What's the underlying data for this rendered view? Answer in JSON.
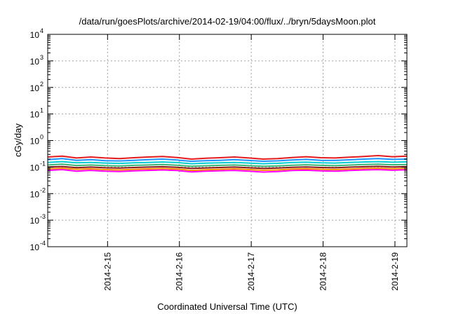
{
  "chart_data": {
    "type": "line",
    "title": "/data/run/goesPlots/archive/2014-02-19/04:00/flux/../bryn/5daysMoon.plot",
    "xlabel": "Coordinated Universal Time (UTC)",
    "ylabel": "cGy/day",
    "y_scale": "log",
    "ylim": [
      0.0001,
      10000
    ],
    "xlim": [
      "2014-02-14 04:00",
      "2014-02-19 04:00"
    ],
    "grid": true,
    "y_ticks": [
      {
        "base": "10",
        "exp": "-4",
        "value": 0.0001
      },
      {
        "base": "10",
        "exp": "-3",
        "value": 0.001
      },
      {
        "base": "10",
        "exp": "-2",
        "value": 0.01
      },
      {
        "base": "10",
        "exp": "-1",
        "value": 0.1
      },
      {
        "base": "10",
        "exp": "0",
        "value": 1
      },
      {
        "base": "10",
        "exp": "1",
        "value": 10
      },
      {
        "base": "10",
        "exp": "2",
        "value": 100
      },
      {
        "base": "10",
        "exp": "3",
        "value": 1000
      },
      {
        "base": "10",
        "exp": "4",
        "value": 10000
      }
    ],
    "x_ticks": [
      {
        "label": "2014-2-15",
        "value": "2014-02-15 00:00"
      },
      {
        "label": "2014-2-16",
        "value": "2014-02-16 00:00"
      },
      {
        "label": "2014-2-17",
        "value": "2014-02-17 00:00"
      },
      {
        "label": "2014-2-18",
        "value": "2014-02-18 00:00"
      },
      {
        "label": "2014-2-19",
        "value": "2014-02-19 00:00"
      }
    ],
    "series": [
      {
        "color": "#ff00ff",
        "values": [
          0.075,
          0.08,
          0.07,
          0.075,
          0.07,
          0.068,
          0.072,
          0.075,
          0.078,
          0.074,
          0.066,
          0.07,
          0.073,
          0.075,
          0.07,
          0.065,
          0.068,
          0.074,
          0.076,
          0.072,
          0.07,
          0.074,
          0.078,
          0.08,
          0.076,
          0.079
        ]
      },
      {
        "color": "#ff8c00",
        "values": [
          0.085,
          0.09,
          0.082,
          0.085,
          0.08,
          0.078,
          0.082,
          0.085,
          0.088,
          0.084,
          0.075,
          0.079,
          0.082,
          0.085,
          0.08,
          0.076,
          0.078,
          0.084,
          0.086,
          0.082,
          0.08,
          0.084,
          0.088,
          0.09,
          0.086,
          0.089
        ]
      },
      {
        "color": "#8b1a1a",
        "values": [
          0.1,
          0.105,
          0.095,
          0.1,
          0.094,
          0.092,
          0.096,
          0.1,
          0.103,
          0.098,
          0.089,
          0.093,
          0.096,
          0.1,
          0.094,
          0.089,
          0.092,
          0.098,
          0.101,
          0.096,
          0.094,
          0.099,
          0.103,
          0.106,
          0.101,
          0.104
        ]
      },
      {
        "color": "#3cb371",
        "values": [
          0.12,
          0.128,
          0.115,
          0.12,
          0.113,
          0.11,
          0.116,
          0.12,
          0.124,
          0.118,
          0.107,
          0.112,
          0.116,
          0.12,
          0.113,
          0.107,
          0.111,
          0.118,
          0.122,
          0.116,
          0.113,
          0.119,
          0.124,
          0.128,
          0.122,
          0.125
        ]
      },
      {
        "color": "#00ced1",
        "values": [
          0.15,
          0.16,
          0.145,
          0.15,
          0.142,
          0.138,
          0.145,
          0.15,
          0.156,
          0.148,
          0.134,
          0.14,
          0.145,
          0.15,
          0.142,
          0.134,
          0.139,
          0.148,
          0.153,
          0.145,
          0.142,
          0.149,
          0.156,
          0.16,
          0.153,
          0.157
        ]
      },
      {
        "color": "#1e90ff",
        "values": [
          0.19,
          0.21,
          0.18,
          0.19,
          0.175,
          0.17,
          0.18,
          0.19,
          0.2,
          0.185,
          0.165,
          0.175,
          0.18,
          0.19,
          0.178,
          0.165,
          0.172,
          0.185,
          0.195,
          0.18,
          0.178,
          0.188,
          0.2,
          0.21,
          0.195,
          0.2
        ]
      },
      {
        "color": "#e41a1c",
        "values": [
          0.24,
          0.26,
          0.22,
          0.24,
          0.22,
          0.21,
          0.225,
          0.24,
          0.25,
          0.23,
          0.2,
          0.215,
          0.225,
          0.24,
          0.22,
          0.2,
          0.21,
          0.23,
          0.245,
          0.225,
          0.22,
          0.235,
          0.25,
          0.27,
          0.245,
          0.26
        ]
      }
    ],
    "series_start": "2014-02-14 04:00",
    "series_end": "2014-02-19 04:00"
  }
}
